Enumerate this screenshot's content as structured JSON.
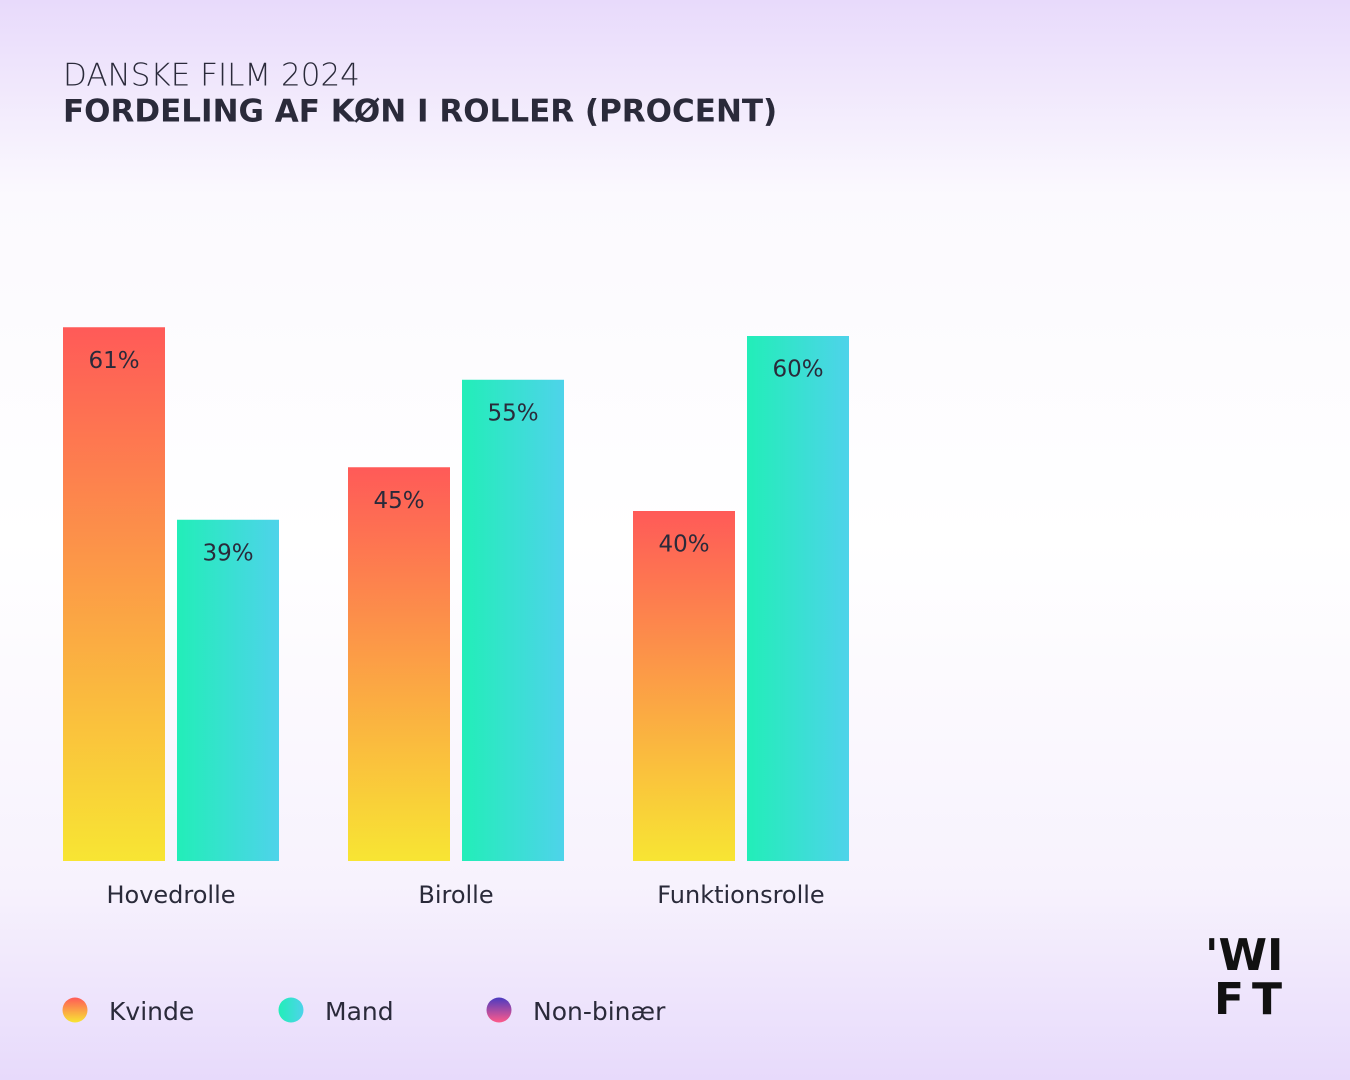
{
  "chart_data": {
    "type": "bar",
    "title": "DANSKE FILM 2024",
    "subtitle": "FORDELING AF KØN I ROLLER (PROCENT)",
    "categories": [
      "Hovedrolle",
      "Birolle",
      "Funktionsrolle"
    ],
    "series": [
      {
        "name": "Kvinde",
        "color": [
          "#ff5a58",
          "#f8e533"
        ],
        "values": [
          61,
          45,
          40
        ],
        "value_labels": [
          "61%",
          "45%",
          "40%"
        ]
      },
      {
        "name": "Mand",
        "color": [
          "#22eeb8",
          "#4ed3ea"
        ],
        "values": [
          39,
          55,
          60
        ],
        "value_labels": [
          "39%",
          "55%",
          "60%"
        ]
      },
      {
        "name": "Non-binær",
        "color": [
          "#4b3bc0",
          "#ff5a8a"
        ],
        "values": [
          0,
          0,
          0
        ]
      }
    ],
    "ylim": [
      0,
      100
    ],
    "logo": [
      "'WI",
      "FT"
    ]
  }
}
